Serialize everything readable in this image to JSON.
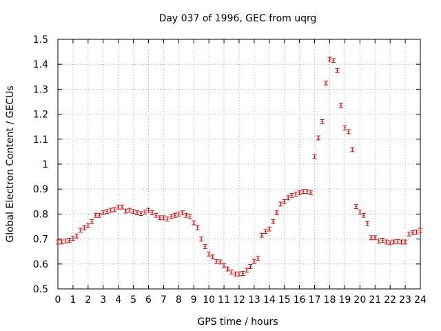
{
  "chart_data": {
    "type": "scatter",
    "title": "Day 037 of 1996, GEC from uqrg",
    "xlabel": "GPS time / hours",
    "ylabel": "Global Electron Content / GECUs",
    "xlim": [
      0,
      24
    ],
    "ylim": [
      0.5,
      1.5
    ],
    "x_ticks": [
      "0",
      "1",
      "2",
      "3",
      "4",
      "5",
      "6",
      "7",
      "8",
      "9",
      "10",
      "11",
      "12",
      "13",
      "14",
      "15",
      "16",
      "17",
      "18",
      "19",
      "20",
      "21",
      "22",
      "23",
      "24"
    ],
    "y_ticks": [
      "0.5",
      "0.6",
      "0.7",
      "0.8",
      "0.9",
      "1",
      "1.1",
      "1.2",
      "1.3",
      "1.4",
      "1.5"
    ],
    "grid": true,
    "legend": "none",
    "marker_color": "#cc0000",
    "error_bar": 0.008,
    "series": [
      {
        "x": [
          0,
          0.25,
          0.5,
          0.75,
          1,
          1.25,
          1.5,
          1.75,
          2,
          2.25,
          2.5,
          2.75,
          3,
          3.25,
          3.5,
          3.75,
          4,
          4.25,
          4.5,
          4.75,
          5,
          5.25,
          5.5,
          5.75,
          6,
          6.25,
          6.5,
          6.75,
          7,
          7.25,
          7.5,
          7.75,
          8,
          8.25,
          8.5,
          8.75,
          9,
          9.25,
          9.5,
          9.75,
          10,
          10.25,
          10.5,
          10.75,
          11,
          11.25,
          11.5,
          11.75,
          12,
          12.25,
          12.5,
          12.75,
          13,
          13.25,
          13.5,
          13.75,
          14,
          14.25,
          14.5,
          14.75,
          15,
          15.25,
          15.5,
          15.75,
          16,
          16.25,
          16.5,
          16.75,
          17,
          17.25,
          17.5,
          17.75,
          18,
          18.25,
          18.5,
          18.75,
          19,
          19.25,
          19.5,
          19.75,
          20,
          20.25,
          20.5,
          20.75,
          21,
          21.25,
          21.5,
          21.75,
          22,
          22.25,
          22.5,
          22.75,
          23,
          23.25,
          23.5,
          23.75,
          24
        ],
        "y": [
          0.688,
          0.688,
          0.692,
          0.695,
          0.702,
          0.712,
          0.735,
          0.745,
          0.755,
          0.77,
          0.795,
          0.795,
          0.805,
          0.81,
          0.815,
          0.818,
          0.828,
          0.828,
          0.812,
          0.815,
          0.81,
          0.805,
          0.802,
          0.808,
          0.815,
          0.805,
          0.795,
          0.785,
          0.785,
          0.78,
          0.79,
          0.795,
          0.8,
          0.805,
          0.795,
          0.79,
          0.765,
          0.745,
          0.7,
          0.67,
          0.64,
          0.628,
          0.61,
          0.608,
          0.595,
          0.58,
          0.568,
          0.56,
          0.56,
          0.562,
          0.575,
          0.59,
          0.61,
          0.622,
          0.715,
          0.73,
          0.74,
          0.77,
          0.805,
          0.84,
          0.85,
          0.865,
          0.875,
          0.88,
          0.885,
          0.89,
          0.89,
          0.885,
          1.03,
          1.105,
          1.17,
          1.325,
          1.42,
          1.415,
          1.375,
          1.235,
          1.145,
          1.13,
          1.058,
          0.83,
          0.808,
          0.795,
          0.762,
          0.705,
          0.705,
          0.692,
          0.695,
          0.688,
          0.685,
          0.688,
          0.69,
          0.688,
          0.688,
          0.72,
          0.725,
          0.728,
          0.735
        ]
      }
    ]
  }
}
